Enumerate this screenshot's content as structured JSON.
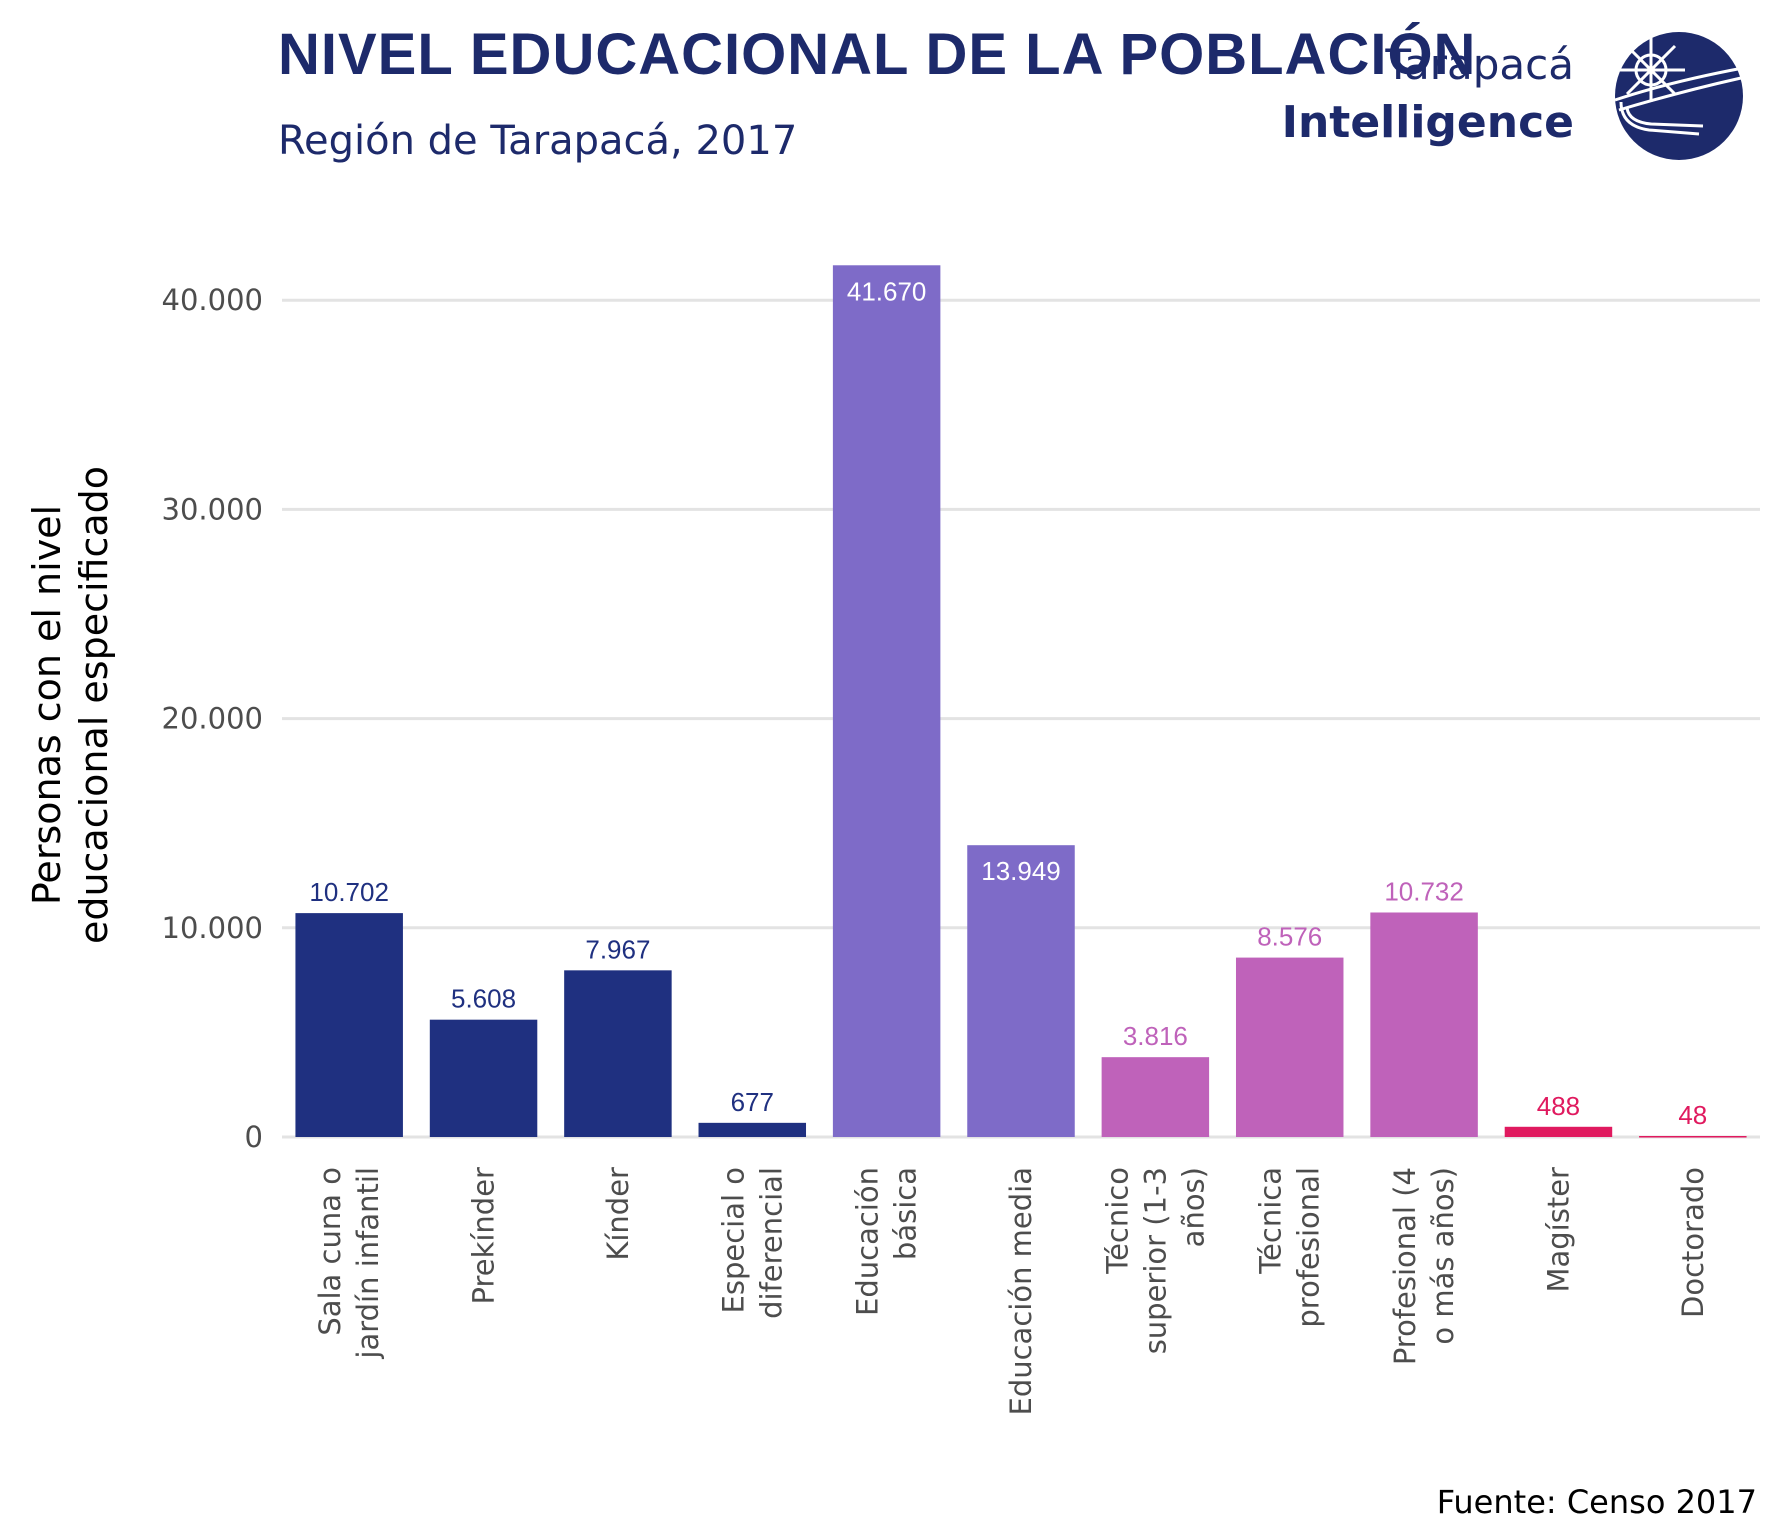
{
  "header": {
    "title": "NIVEL EDUCACIONAL DE LA POBLACIÓN",
    "subtitle": "Región de Tarapacá, 2017"
  },
  "brand": {
    "line1": "Tarapacá",
    "line2": "Intelligence",
    "logo_icon": "sun-over-sea-icon",
    "color": "#1d2a6b"
  },
  "caption": "Fuente: Censo 2017",
  "chart_data": {
    "type": "bar",
    "title": "NIVEL EDUCACIONAL DE LA POBLACIÓN",
    "subtitle": "Región de Tarapacá, 2017",
    "xlabel": "",
    "ylabel": [
      "Personas con el nivel",
      "educacional especificado"
    ],
    "ylim": [
      0,
      43500
    ],
    "yticks": [
      0,
      10000,
      20000,
      30000,
      40000
    ],
    "ytick_labels": [
      "0",
      "10.000",
      "20.000",
      "30.000",
      "40.000"
    ],
    "grid": "horizontal",
    "categories": [
      [
        "Sala cuna o",
        "jardín infantil"
      ],
      [
        "Prekínder"
      ],
      [
        "Kínder"
      ],
      [
        "Especial o",
        "diferencial"
      ],
      [
        "Educación",
        "básica"
      ],
      [
        "Educación media"
      ],
      [
        "Técnico",
        "superior (1-3",
        "años)"
      ],
      [
        "Técnica",
        "profesional"
      ],
      [
        "Profesional (4",
        "o más años)"
      ],
      [
        "Magíster"
      ],
      [
        "Doctorado"
      ]
    ],
    "values": [
      10702,
      5608,
      7967,
      677,
      41670,
      13949,
      3816,
      8576,
      10732,
      488,
      48
    ],
    "value_labels": [
      "10.702",
      "5.608",
      "7.967",
      "677",
      "41.670",
      "13.949",
      "3.816",
      "8.576",
      "10.732",
      "488",
      "48"
    ],
    "colors": [
      "#1f3080",
      "#1f3080",
      "#1f3080",
      "#1f3080",
      "#7e6bc8",
      "#7e6bc8",
      "#bf62ba",
      "#bf62ba",
      "#bf62ba",
      "#e01a5f",
      "#e01a5f"
    ],
    "label_inside": [
      false,
      false,
      false,
      false,
      true,
      true,
      false,
      false,
      false,
      false,
      false
    ]
  }
}
